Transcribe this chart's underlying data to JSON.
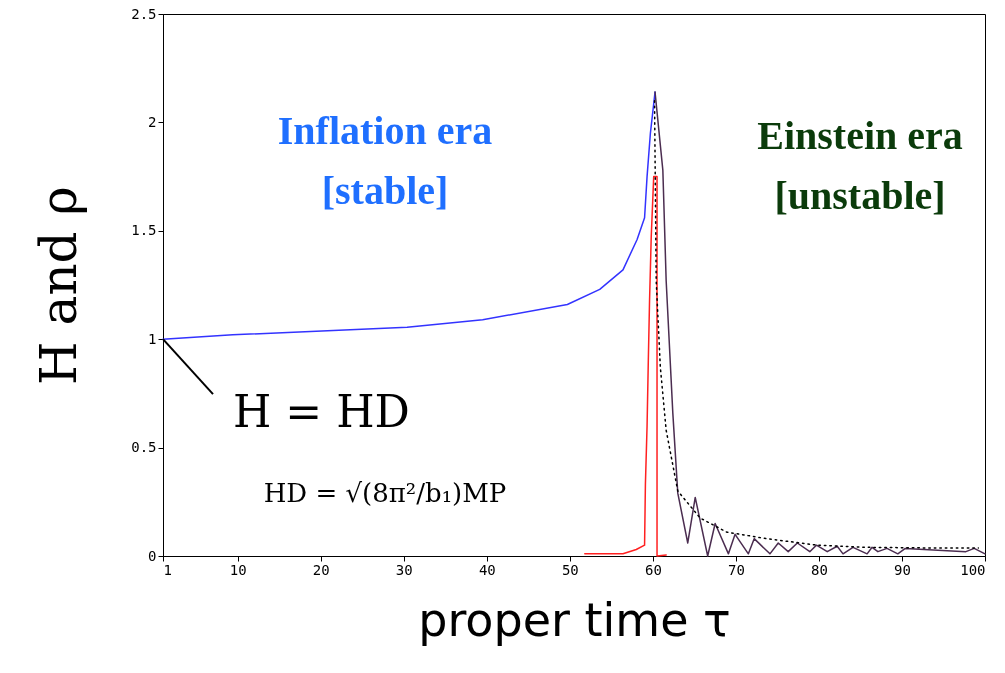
{
  "chart_data": {
    "type": "line",
    "xlabel": "proper time τ",
    "ylabel": "H and ρ",
    "xlim": [
      1,
      100
    ],
    "ylim": [
      0,
      2.5
    ],
    "xticks": [
      1,
      10,
      20,
      30,
      40,
      50,
      60,
      70,
      80,
      90,
      100
    ],
    "yticks": [
      0,
      0.5,
      1,
      1.5,
      2,
      2.5
    ],
    "grid": false,
    "series": [
      {
        "color": "#3333ff",
        "line_style": "solid",
        "x": [
          1,
          9.4,
          21.5,
          30.4,
          39.5,
          49.7,
          53.6,
          56.4,
          58.1,
          59.0,
          59.3,
          59.7,
          60.26
        ],
        "values": [
          1.0,
          1.02,
          1.04,
          1.055,
          1.09,
          1.16,
          1.23,
          1.32,
          1.46,
          1.56,
          1.75,
          1.95,
          2.14
        ]
      },
      {
        "color": "#4b2d50",
        "line_style": "solid",
        "x": [
          60.26,
          61.2,
          61.6,
          62.4,
          63.0,
          64.2,
          65.1,
          66.6,
          67.5,
          69.1,
          69.9,
          71.5,
          72.2,
          74.1,
          75.1,
          76.3,
          77.4,
          78.9,
          79.7,
          81.0,
          82.2,
          82.9,
          84.1,
          85.8,
          86.4,
          87.1,
          88.2,
          89.5,
          90.4,
          97.7,
          98.7,
          100
        ],
        "values": [
          2.14,
          1.78,
          1.27,
          0.66,
          0.29,
          0.06,
          0.27,
          0.0,
          0.15,
          0.01,
          0.1,
          0.01,
          0.08,
          0.01,
          0.06,
          0.02,
          0.06,
          0.02,
          0.05,
          0.02,
          0.045,
          0.01,
          0.04,
          0.01,
          0.04,
          0.02,
          0.035,
          0.01,
          0.035,
          0.02,
          0.035,
          0.01
        ]
      },
      {
        "color": "#ff2020",
        "line_style": "solid",
        "x": [
          51.8,
          56.4,
          58.0,
          59.0,
          59.1,
          59.3,
          59.45,
          59.6,
          59.8,
          60.1,
          60.5,
          60.5,
          61.6
        ],
        "values": [
          0.01,
          0.01,
          0.03,
          0.05,
          0.33,
          0.6,
          0.9,
          1.18,
          1.47,
          1.75,
          1.75,
          0.0,
          0.005
        ]
      },
      {
        "color": "#000000",
        "line_style": "dotted",
        "x": [
          60.2,
          60.4,
          60.9,
          61.6,
          63.0,
          65.7,
          68.9,
          73.7,
          79.8,
          85.8,
          93.7,
          99.2
        ],
        "values": [
          2.1,
          1.27,
          0.87,
          0.58,
          0.3,
          0.175,
          0.11,
          0.08,
          0.05,
          0.04,
          0.037,
          0.037
        ]
      }
    ],
    "annotations": [
      "Inflation era\n[stable]",
      "Einstein era\n[unstable]",
      {
        "text": "H = HD",
        "x": 1,
        "y": 1
      },
      "HD = √(8π²/b₁)MP"
    ]
  }
}
